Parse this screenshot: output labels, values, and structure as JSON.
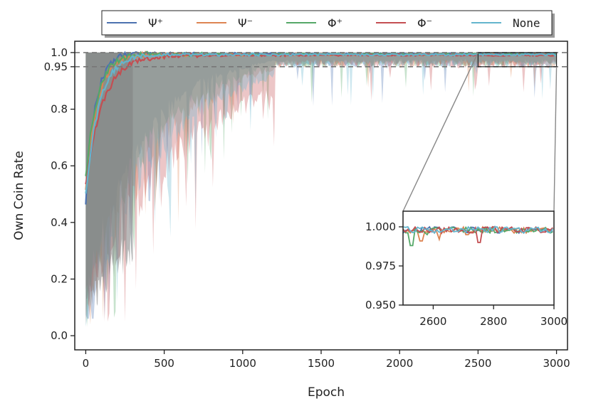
{
  "chart_data": {
    "type": "line",
    "xlabel": "Epoch",
    "ylabel": "Own Coin Rate",
    "xlim": [
      -70,
      3070
    ],
    "ylim": [
      -0.05,
      1.04
    ],
    "xticks": [
      0,
      500,
      1000,
      1500,
      2000,
      2500,
      3000
    ],
    "xtick_labels": [
      "0",
      "500",
      "1000",
      "1500",
      "2000",
      "2500",
      "3000"
    ],
    "yticks": [
      0.0,
      0.2,
      0.4,
      0.6,
      0.8,
      0.95,
      1.0
    ],
    "ytick_labels": [
      "0.0",
      "0.2",
      "0.4",
      "0.6",
      "0.8",
      "0.95",
      "1.0"
    ],
    "reference_lines": [
      {
        "y": 1.0,
        "style": "dashed",
        "color": "#777777"
      },
      {
        "y": 0.95,
        "style": "dashed",
        "color": "#777777"
      }
    ],
    "legend_position": "top-center",
    "series": [
      {
        "name": "Ψ⁺",
        "color": "#4C72B0",
        "start": 0.47,
        "tau": 60,
        "final": 0.998,
        "min_band": 0.06
      },
      {
        "name": "Ψ⁻",
        "color": "#DD8452",
        "start": 0.52,
        "tau": 75,
        "final": 0.996,
        "min_band": 0.04
      },
      {
        "name": "Φ⁺",
        "color": "#55A868",
        "start": 0.55,
        "tau": 70,
        "final": 0.997,
        "min_band": 0.03
      },
      {
        "name": "Φ⁻",
        "color": "#C44E52",
        "start": 0.53,
        "tau": 110,
        "final": 0.994,
        "min_band": 0.05
      },
      {
        "name": "None",
        "color": "#64B5CD",
        "start": 0.5,
        "tau": 85,
        "final": 0.996,
        "min_band": 0.0
      }
    ],
    "spread_band": {
      "color": "#808080",
      "x_range": [
        0,
        300
      ],
      "y_low": 0.05,
      "y_high": 1.0
    },
    "inset": {
      "xlim": [
        2500,
        3000
      ],
      "ylim": [
        0.95,
        1.01
      ],
      "xticks": [
        2600,
        2800,
        3000
      ],
      "xtick_labels": [
        "2600",
        "2800",
        "3000"
      ],
      "yticks": [
        0.95,
        0.975,
        1.0
      ],
      "ytick_labels": [
        "0.950",
        "0.975",
        "1.000"
      ],
      "zoom_box": {
        "x": [
          2500,
          3000
        ],
        "y": [
          0.95,
          1.0
        ]
      }
    }
  }
}
